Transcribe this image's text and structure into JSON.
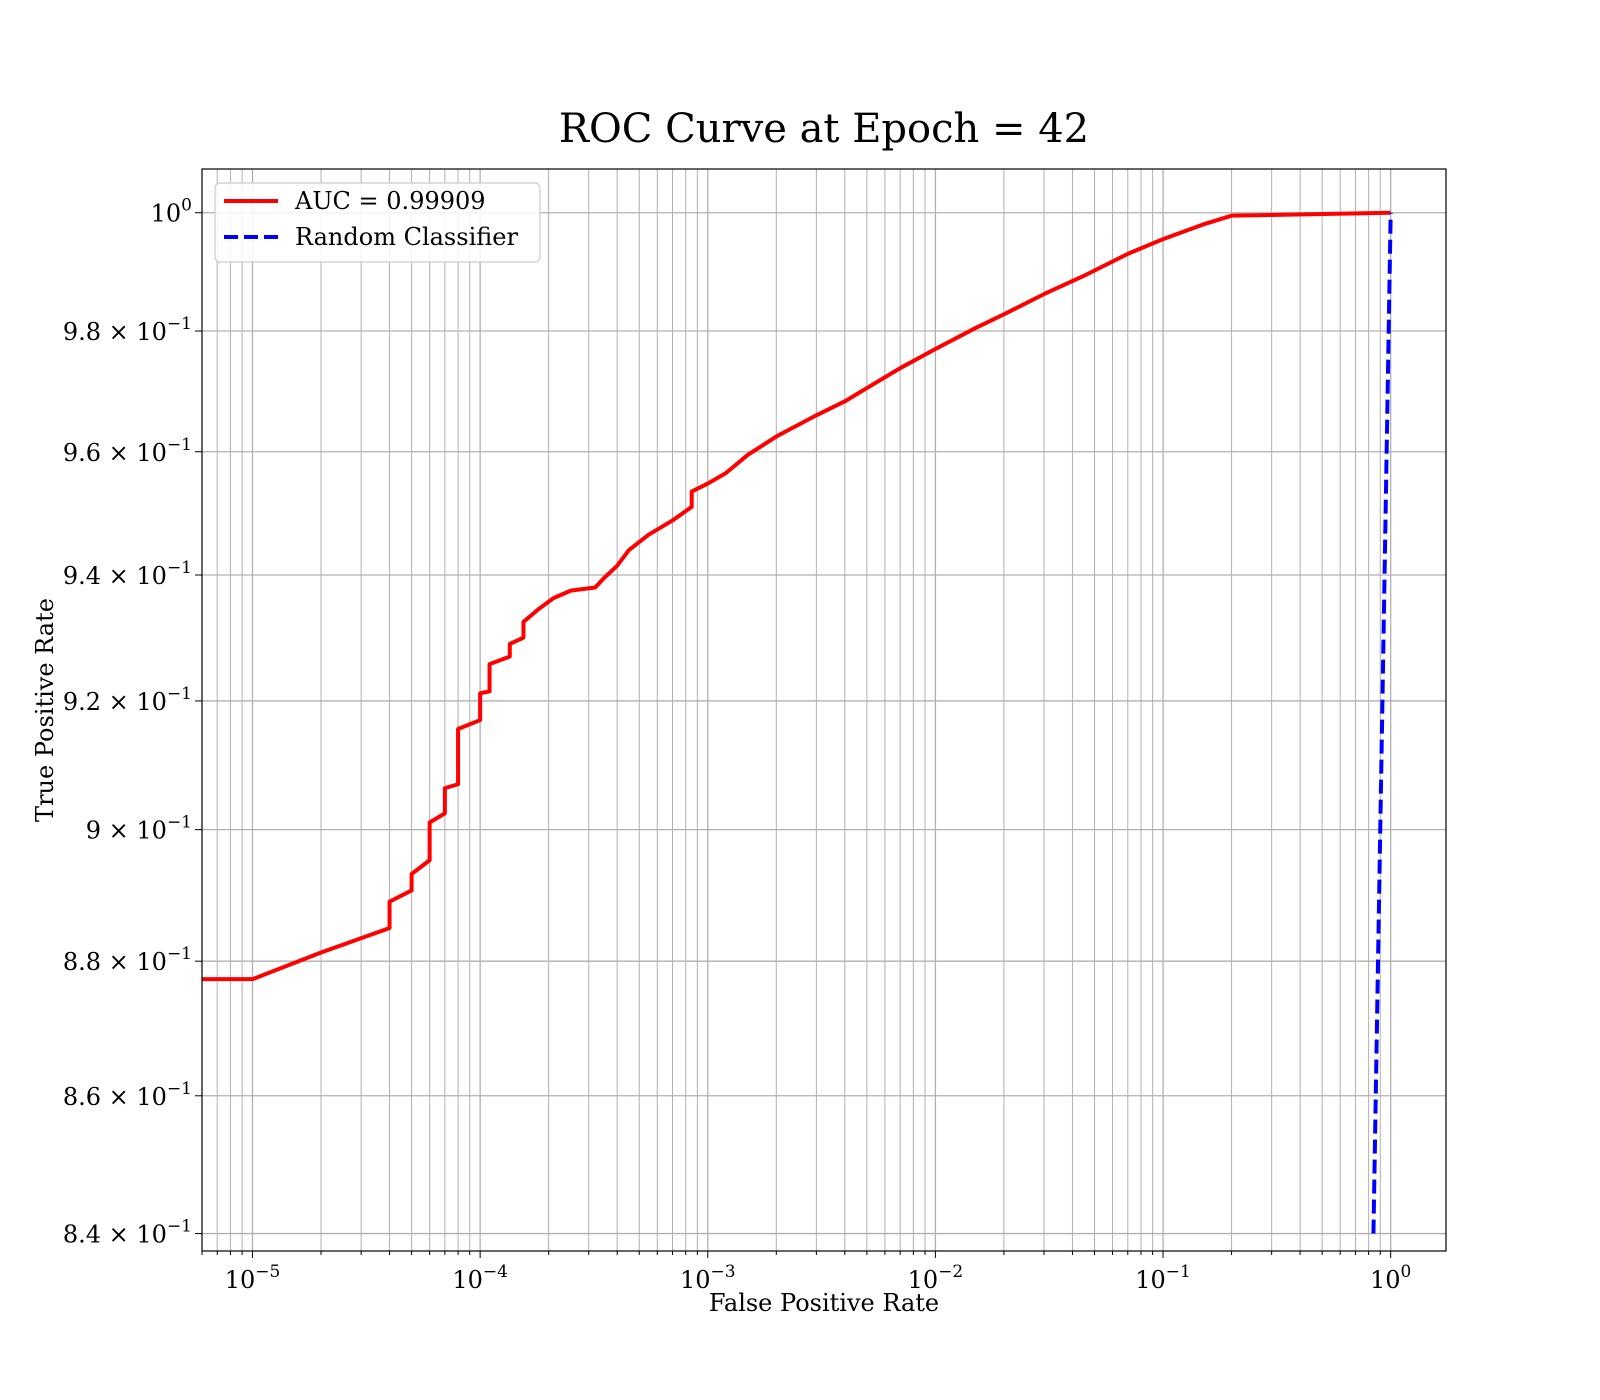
{
  "chart_data": {
    "type": "line",
    "title": "ROC Curve at Epoch = 42",
    "xlabel": "False Positive Rate",
    "ylabel": "True Positive Rate",
    "xscale": "log",
    "yscale": "log",
    "xlim": [
      6e-06,
      1.75
    ],
    "ylim": [
      0.8375,
      1.0075
    ],
    "grid": true,
    "grid_minor": true,
    "legend_position": "top-left",
    "x_ticks": [
      {
        "value": 1e-05,
        "base": "10",
        "exp": "−5"
      },
      {
        "value": 0.0001,
        "base": "10",
        "exp": "−4"
      },
      {
        "value": 0.001,
        "base": "10",
        "exp": "−3"
      },
      {
        "value": 0.01,
        "base": "10",
        "exp": "−2"
      },
      {
        "value": 0.1,
        "base": "10",
        "exp": "−1"
      },
      {
        "value": 1,
        "base": "10",
        "exp": "0"
      }
    ],
    "y_ticks": [
      {
        "value": 0.84,
        "base": "8.4 × 10",
        "exp": "−1"
      },
      {
        "value": 0.86,
        "base": "8.6 × 10",
        "exp": "−1"
      },
      {
        "value": 0.88,
        "base": "8.8 × 10",
        "exp": "−1"
      },
      {
        "value": 0.9,
        "base": "9 × 10",
        "exp": "−1"
      },
      {
        "value": 0.92,
        "base": "9.2 × 10",
        "exp": "−1"
      },
      {
        "value": 0.94,
        "base": "9.4 × 10",
        "exp": "−1"
      },
      {
        "value": 0.96,
        "base": "9.6 × 10",
        "exp": "−1"
      },
      {
        "value": 0.98,
        "base": "9.8 × 10",
        "exp": "−1"
      },
      {
        "value": 1.0,
        "base": "10",
        "exp": "0"
      }
    ],
    "series": [
      {
        "name": "AUC = 0.99909",
        "color": "#ff0000",
        "style": "solid",
        "points": [
          [
            6e-06,
            0.8773
          ],
          [
            1e-05,
            0.8773
          ],
          [
            2e-05,
            0.8813
          ],
          [
            4e-05,
            0.885
          ],
          [
            4e-05,
            0.889
          ],
          [
            5e-05,
            0.8907
          ],
          [
            5e-05,
            0.8932
          ],
          [
            6e-05,
            0.8953
          ],
          [
            6e-05,
            0.9011
          ],
          [
            7e-05,
            0.9025
          ],
          [
            7e-05,
            0.9064
          ],
          [
            8e-05,
            0.907
          ],
          [
            8e-05,
            0.9156
          ],
          [
            0.0001,
            0.917
          ],
          [
            0.0001,
            0.9212
          ],
          [
            0.00011,
            0.9215
          ],
          [
            0.00011,
            0.9258
          ],
          [
            0.000135,
            0.927
          ],
          [
            0.000135,
            0.929
          ],
          [
            0.000155,
            0.93
          ],
          [
            0.000155,
            0.9325
          ],
          [
            0.00018,
            0.9345
          ],
          [
            0.00021,
            0.9363
          ],
          [
            0.00025,
            0.9375
          ],
          [
            0.00032,
            0.938
          ],
          [
            0.00035,
            0.9395
          ],
          [
            0.0004,
            0.9415
          ],
          [
            0.00045,
            0.944
          ],
          [
            0.00055,
            0.9465
          ],
          [
            0.0007,
            0.9488
          ],
          [
            0.00085,
            0.951
          ],
          [
            0.00085,
            0.9535
          ],
          [
            0.001,
            0.9548
          ],
          [
            0.0012,
            0.9565
          ],
          [
            0.0015,
            0.9595
          ],
          [
            0.002,
            0.9625
          ],
          [
            0.003,
            0.966
          ],
          [
            0.004,
            0.9683
          ],
          [
            0.005,
            0.9705
          ],
          [
            0.007,
            0.9738
          ],
          [
            0.01,
            0.977
          ],
          [
            0.015,
            0.9805
          ],
          [
            0.02,
            0.9828
          ],
          [
            0.03,
            0.9862
          ],
          [
            0.045,
            0.9893
          ],
          [
            0.07,
            0.993
          ],
          [
            0.1,
            0.9955
          ],
          [
            0.15,
            0.998
          ],
          [
            0.2,
            0.9995
          ],
          [
            1,
            1.0
          ]
        ]
      },
      {
        "name": "Random Classifier",
        "color": "#0000ff",
        "style": "dashed",
        "points": [
          [
            0.84,
            0.84
          ],
          [
            1,
            1.0
          ]
        ]
      }
    ]
  }
}
